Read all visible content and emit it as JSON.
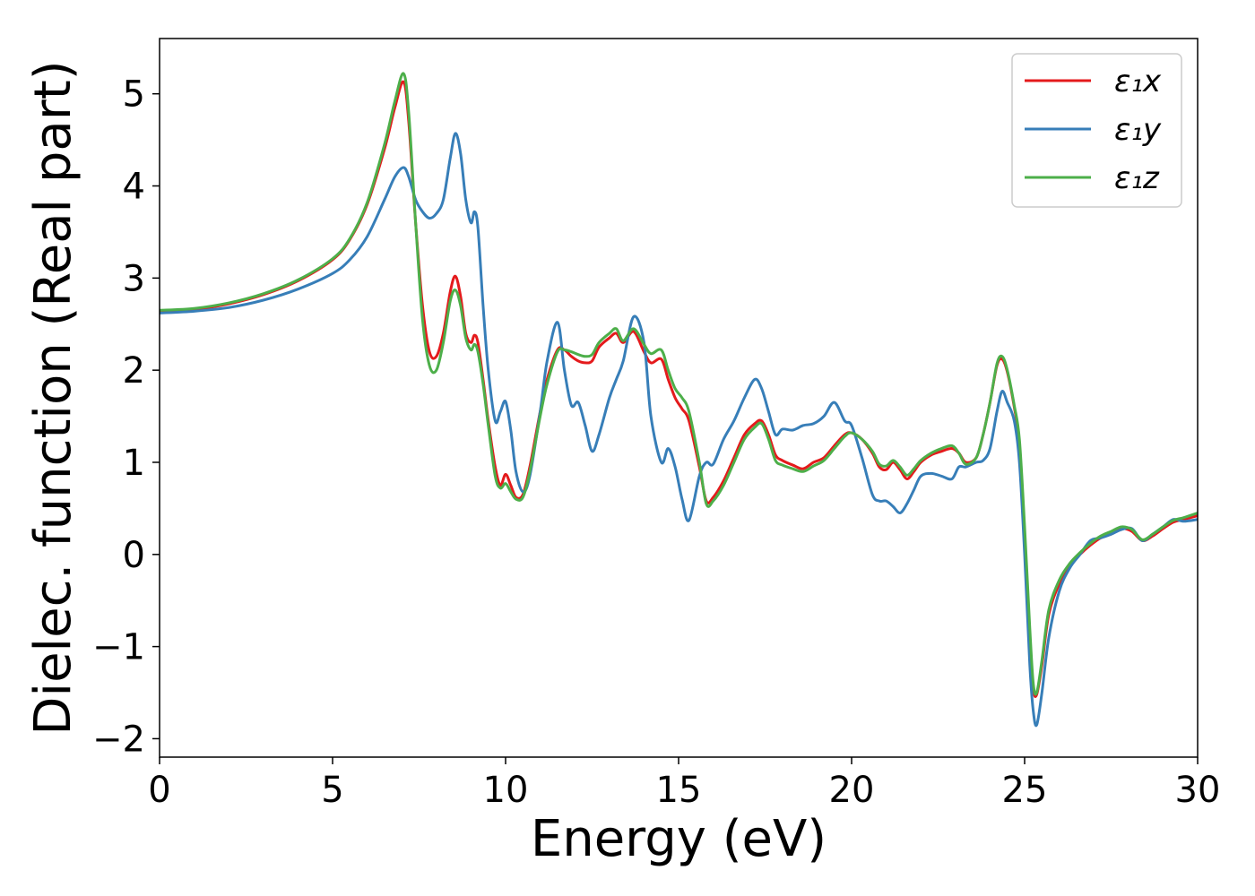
{
  "chart_data": {
    "type": "line",
    "title": "",
    "xlabel": "Energy (eV)",
    "ylabel": "Dielec. function (Real part)",
    "xlim": [
      0,
      30
    ],
    "ylim": [
      -2.2,
      5.6
    ],
    "xticks": [
      0,
      5,
      10,
      15,
      20,
      25,
      30
    ],
    "xtick_labels": [
      "0",
      "5",
      "10",
      "15",
      "20",
      "25",
      "30"
    ],
    "yticks": [
      -2,
      -1,
      0,
      1,
      2,
      3,
      4,
      5
    ],
    "ytick_labels": [
      "−2",
      "−1",
      "0",
      "1",
      "2",
      "3",
      "4",
      "5"
    ],
    "grid": false,
    "legend_position": "top-right",
    "series": [
      {
        "name": "ε₁x",
        "color": "#e41a1c",
        "x": [
          0,
          1,
          2,
          3,
          4,
          5,
          5.5,
          6,
          6.5,
          6.8,
          7.05,
          7.2,
          7.4,
          7.6,
          7.8,
          8.0,
          8.2,
          8.4,
          8.55,
          8.7,
          8.85,
          9.0,
          9.1,
          9.2,
          9.35,
          9.5,
          9.7,
          9.85,
          10.0,
          10.15,
          10.3,
          10.5,
          10.7,
          11.0,
          11.2,
          11.5,
          11.7,
          11.9,
          12.1,
          12.3,
          12.5,
          12.7,
          13.0,
          13.2,
          13.4,
          13.7,
          14.0,
          14.2,
          14.5,
          14.7,
          14.9,
          15.1,
          15.3,
          15.6,
          15.8,
          16.0,
          16.3,
          16.6,
          16.9,
          17.2,
          17.4,
          17.6,
          17.8,
          18.0,
          18.3,
          18.6,
          18.9,
          19.2,
          19.5,
          19.8,
          20.0,
          20.3,
          20.6,
          20.8,
          21.0,
          21.2,
          21.4,
          21.6,
          21.8,
          22.0,
          22.3,
          22.6,
          22.9,
          23.1,
          23.3,
          23.6,
          23.8,
          24.0,
          24.2,
          24.35,
          24.5,
          24.7,
          24.85,
          25.0,
          25.15,
          25.25,
          25.35,
          25.5,
          25.7,
          26.0,
          26.3,
          26.6,
          26.9,
          27.2,
          27.5,
          27.8,
          28.1,
          28.4,
          28.7,
          29.0,
          29.3,
          29.6,
          30.0
        ],
        "y": [
          2.64,
          2.66,
          2.72,
          2.82,
          2.97,
          3.2,
          3.42,
          3.8,
          4.4,
          4.85,
          5.13,
          4.7,
          3.6,
          2.7,
          2.2,
          2.15,
          2.4,
          2.85,
          3.02,
          2.8,
          2.4,
          2.3,
          2.38,
          2.3,
          1.9,
          1.45,
          0.95,
          0.75,
          0.87,
          0.75,
          0.62,
          0.65,
          0.95,
          1.55,
          1.9,
          2.22,
          2.22,
          2.15,
          2.1,
          2.08,
          2.1,
          2.25,
          2.35,
          2.4,
          2.3,
          2.42,
          2.2,
          2.08,
          2.12,
          1.9,
          1.7,
          1.58,
          1.45,
          0.95,
          0.58,
          0.62,
          0.8,
          1.05,
          1.3,
          1.42,
          1.45,
          1.3,
          1.08,
          1.02,
          0.97,
          0.93,
          1.0,
          1.05,
          1.18,
          1.3,
          1.32,
          1.25,
          1.1,
          0.95,
          0.92,
          1.0,
          0.92,
          0.82,
          0.9,
          1.0,
          1.08,
          1.12,
          1.15,
          1.1,
          1.0,
          1.05,
          1.3,
          1.65,
          2.05,
          2.12,
          1.98,
          1.6,
          1.2,
          0.2,
          -0.9,
          -1.45,
          -1.52,
          -1.2,
          -0.65,
          -0.32,
          -0.12,
          0.0,
          0.1,
          0.18,
          0.22,
          0.28,
          0.25,
          0.15,
          0.2,
          0.28,
          0.35,
          0.38,
          0.42
        ]
      },
      {
        "name": "ε₁y",
        "color": "#377eb8",
        "x": [
          0,
          1,
          2,
          3,
          4,
          5,
          5.5,
          6,
          6.5,
          6.8,
          7.05,
          7.2,
          7.4,
          7.6,
          7.8,
          8.0,
          8.2,
          8.4,
          8.55,
          8.7,
          8.85,
          9.0,
          9.1,
          9.2,
          9.35,
          9.5,
          9.7,
          9.85,
          10.0,
          10.15,
          10.3,
          10.5,
          10.7,
          11.0,
          11.2,
          11.5,
          11.7,
          11.9,
          12.1,
          12.3,
          12.5,
          12.7,
          13.0,
          13.2,
          13.4,
          13.7,
          14.0,
          14.2,
          14.5,
          14.7,
          14.9,
          15.1,
          15.3,
          15.6,
          15.8,
          16.0,
          16.3,
          16.6,
          16.9,
          17.2,
          17.4,
          17.6,
          17.8,
          18.0,
          18.3,
          18.6,
          18.9,
          19.2,
          19.5,
          19.8,
          20.0,
          20.3,
          20.6,
          20.8,
          21.0,
          21.2,
          21.4,
          21.6,
          21.8,
          22.0,
          22.3,
          22.6,
          22.9,
          23.1,
          23.3,
          23.6,
          23.8,
          24.0,
          24.2,
          24.35,
          24.5,
          24.7,
          24.85,
          25.0,
          25.15,
          25.25,
          25.35,
          25.5,
          25.7,
          26.0,
          26.3,
          26.6,
          26.9,
          27.2,
          27.5,
          27.8,
          28.1,
          28.4,
          28.7,
          29.0,
          29.3,
          29.6,
          30.0
        ],
        "y": [
          2.62,
          2.64,
          2.68,
          2.76,
          2.88,
          3.05,
          3.2,
          3.45,
          3.85,
          4.1,
          4.2,
          4.1,
          3.85,
          3.72,
          3.65,
          3.7,
          3.85,
          4.3,
          4.57,
          4.35,
          3.85,
          3.6,
          3.72,
          3.55,
          2.7,
          2.0,
          1.45,
          1.55,
          1.66,
          1.35,
          0.9,
          0.68,
          0.85,
          1.55,
          2.1,
          2.52,
          2.0,
          1.62,
          1.65,
          1.4,
          1.12,
          1.3,
          1.7,
          1.9,
          2.1,
          2.58,
          2.3,
          1.5,
          1.0,
          1.15,
          0.95,
          0.6,
          0.37,
          0.85,
          1.0,
          0.98,
          1.25,
          1.45,
          1.7,
          1.9,
          1.8,
          1.55,
          1.3,
          1.36,
          1.35,
          1.4,
          1.42,
          1.5,
          1.65,
          1.45,
          1.4,
          1.05,
          0.65,
          0.58,
          0.58,
          0.52,
          0.45,
          0.55,
          0.7,
          0.85,
          0.88,
          0.85,
          0.82,
          0.95,
          0.95,
          1.0,
          1.02,
          1.15,
          1.55,
          1.77,
          1.65,
          1.45,
          1.0,
          0.0,
          -1.2,
          -1.7,
          -1.85,
          -1.5,
          -0.9,
          -0.4,
          -0.15,
          0.0,
          0.15,
          0.18,
          0.22,
          0.27,
          0.28,
          0.15,
          0.22,
          0.3,
          0.38,
          0.36,
          0.38
        ]
      },
      {
        "name": "ε₁z",
        "color": "#4daf4a",
        "x": [
          0,
          1,
          2,
          3,
          4,
          5,
          5.5,
          6,
          6.5,
          6.8,
          7.05,
          7.2,
          7.4,
          7.6,
          7.8,
          8.0,
          8.2,
          8.4,
          8.55,
          8.7,
          8.85,
          9.0,
          9.1,
          9.2,
          9.35,
          9.5,
          9.7,
          9.85,
          10.0,
          10.15,
          10.3,
          10.5,
          10.7,
          11.0,
          11.2,
          11.5,
          11.7,
          11.9,
          12.1,
          12.3,
          12.5,
          12.7,
          13.0,
          13.2,
          13.4,
          13.7,
          14.0,
          14.2,
          14.5,
          14.7,
          14.9,
          15.1,
          15.3,
          15.6,
          15.8,
          16.0,
          16.3,
          16.6,
          16.9,
          17.2,
          17.4,
          17.6,
          17.8,
          18.0,
          18.3,
          18.6,
          18.9,
          19.2,
          19.5,
          19.8,
          20.0,
          20.3,
          20.6,
          20.8,
          21.0,
          21.2,
          21.4,
          21.6,
          21.8,
          22.0,
          22.3,
          22.6,
          22.9,
          23.1,
          23.3,
          23.6,
          23.8,
          24.0,
          24.2,
          24.35,
          24.5,
          24.7,
          24.85,
          25.0,
          25.15,
          25.25,
          25.35,
          25.5,
          25.7,
          26.0,
          26.3,
          26.6,
          26.9,
          27.2,
          27.5,
          27.8,
          28.1,
          28.4,
          28.7,
          29.0,
          29.3,
          29.6,
          30.0
        ],
        "y": [
          2.65,
          2.67,
          2.73,
          2.83,
          2.98,
          3.21,
          3.43,
          3.82,
          4.45,
          4.92,
          5.22,
          4.8,
          3.6,
          2.55,
          2.05,
          2.0,
          2.3,
          2.75,
          2.87,
          2.7,
          2.35,
          2.22,
          2.28,
          2.2,
          1.85,
          1.4,
          0.85,
          0.72,
          0.77,
          0.68,
          0.6,
          0.62,
          0.9,
          1.5,
          1.85,
          2.2,
          2.22,
          2.2,
          2.17,
          2.15,
          2.17,
          2.3,
          2.4,
          2.45,
          2.32,
          2.45,
          2.28,
          2.18,
          2.22,
          2.0,
          1.8,
          1.7,
          1.55,
          1.0,
          0.55,
          0.58,
          0.75,
          1.0,
          1.25,
          1.38,
          1.42,
          1.25,
          1.02,
          0.97,
          0.93,
          0.9,
          0.96,
          1.02,
          1.15,
          1.28,
          1.32,
          1.25,
          1.12,
          0.98,
          0.96,
          1.02,
          0.95,
          0.86,
          0.93,
          1.02,
          1.1,
          1.15,
          1.18,
          1.1,
          0.98,
          1.05,
          1.3,
          1.65,
          2.07,
          2.15,
          2.0,
          1.62,
          1.25,
          0.3,
          -0.8,
          -1.4,
          -1.5,
          -1.15,
          -0.6,
          -0.28,
          -0.1,
          0.02,
          0.12,
          0.2,
          0.25,
          0.3,
          0.27,
          0.16,
          0.22,
          0.3,
          0.37,
          0.4,
          0.45
        ]
      }
    ]
  }
}
